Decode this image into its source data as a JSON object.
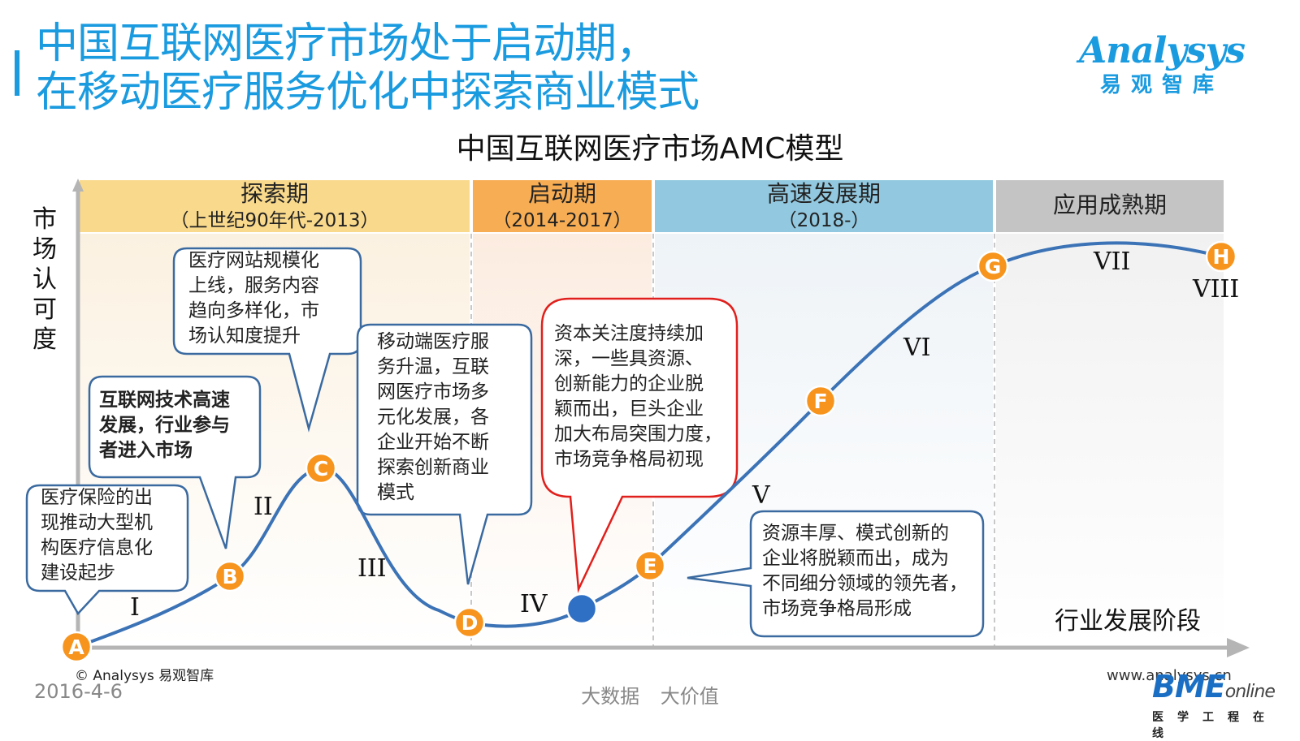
{
  "header": {
    "title_line1": "中国互联网医疗市场处于启动期，",
    "title_line2": "在移动医疗服务优化中探索商业模式",
    "logo_en": "Analysys",
    "logo_cn": "易观智库"
  },
  "diagram": {
    "title": "中国互联网医疗市场AMC模型",
    "y_axis_label": "市场认可度",
    "x_axis_label": "行业发展阶段",
    "phases": [
      {
        "label": "探索期",
        "years": "（上世纪90年代-2013）",
        "color": "#f9d98c",
        "bg": "#fbf1e1"
      },
      {
        "label": "启动期",
        "years": "（2014-2017）",
        "color": "#f7ad54",
        "bg": "#fcece0"
      },
      {
        "label": "高速发展期",
        "years": "（2018-）",
        "color": "#92c9e0",
        "bg": "#eef3f7"
      },
      {
        "label": "应用成熟期",
        "years": "",
        "color": "#c4c4c4",
        "bg": "#f1f1f1"
      }
    ],
    "points": [
      {
        "label": "A",
        "color": "#f7941d"
      },
      {
        "label": "B",
        "color": "#f7941d"
      },
      {
        "label": "C",
        "color": "#f7941d"
      },
      {
        "label": "D",
        "color": "#f7941d"
      },
      {
        "label": "",
        "color": "#2f6fc4"
      },
      {
        "label": "E",
        "color": "#f7941d"
      },
      {
        "label": "F",
        "color": "#f7941d"
      },
      {
        "label": "G",
        "color": "#f7941d"
      },
      {
        "label": "H",
        "color": "#f7941d"
      }
    ],
    "stages": [
      "I",
      "II",
      "III",
      "IV",
      "V",
      "VI",
      "VII",
      "VIII"
    ],
    "callouts": [
      {
        "lines": [
          "医疗保险的出",
          "现推动大型机",
          "构医疗信息化",
          "建设起步"
        ],
        "border": "#3a6aa0"
      },
      {
        "lines": [
          "互联网技术高速",
          "发展，行业参与",
          "者进入市场"
        ],
        "border": "#3a6aa0",
        "bold": true
      },
      {
        "lines": [
          "医疗网站规模化",
          "上线，服务内容",
          "趋向多样化，市",
          "场认知度提升"
        ],
        "border": "#3a6aa0"
      },
      {
        "lines": [
          "移动端医疗服",
          "务升温，互联",
          "网医疗市场多",
          "元化发展，各",
          "企业开始不断",
          "探索创新商业",
          "模式"
        ],
        "border": "#3a6aa0"
      },
      {
        "lines": [
          "资本关注度持续加",
          "深，一些具资源、",
          "创新能力的企业脱",
          "颖而出，巨头企业",
          "加大布局突围力度，",
          "市场竞争格局初现"
        ],
        "border": "#e0201c"
      },
      {
        "lines": [
          "资源丰厚、模式创新的",
          "企业将脱颖而出，成为",
          "不同细分领域的领先者，",
          "市场竞争格局形成"
        ],
        "border": "#3a6aa0"
      }
    ]
  },
  "footer": {
    "copyright": "© Analysys 易观智库",
    "date": "2016-4-6",
    "slogan": "大数据 大价值",
    "site": "www.analysys.cn",
    "bme_main": "BME",
    "bme_online": "online",
    "bme_cn": "医学工程在线"
  }
}
